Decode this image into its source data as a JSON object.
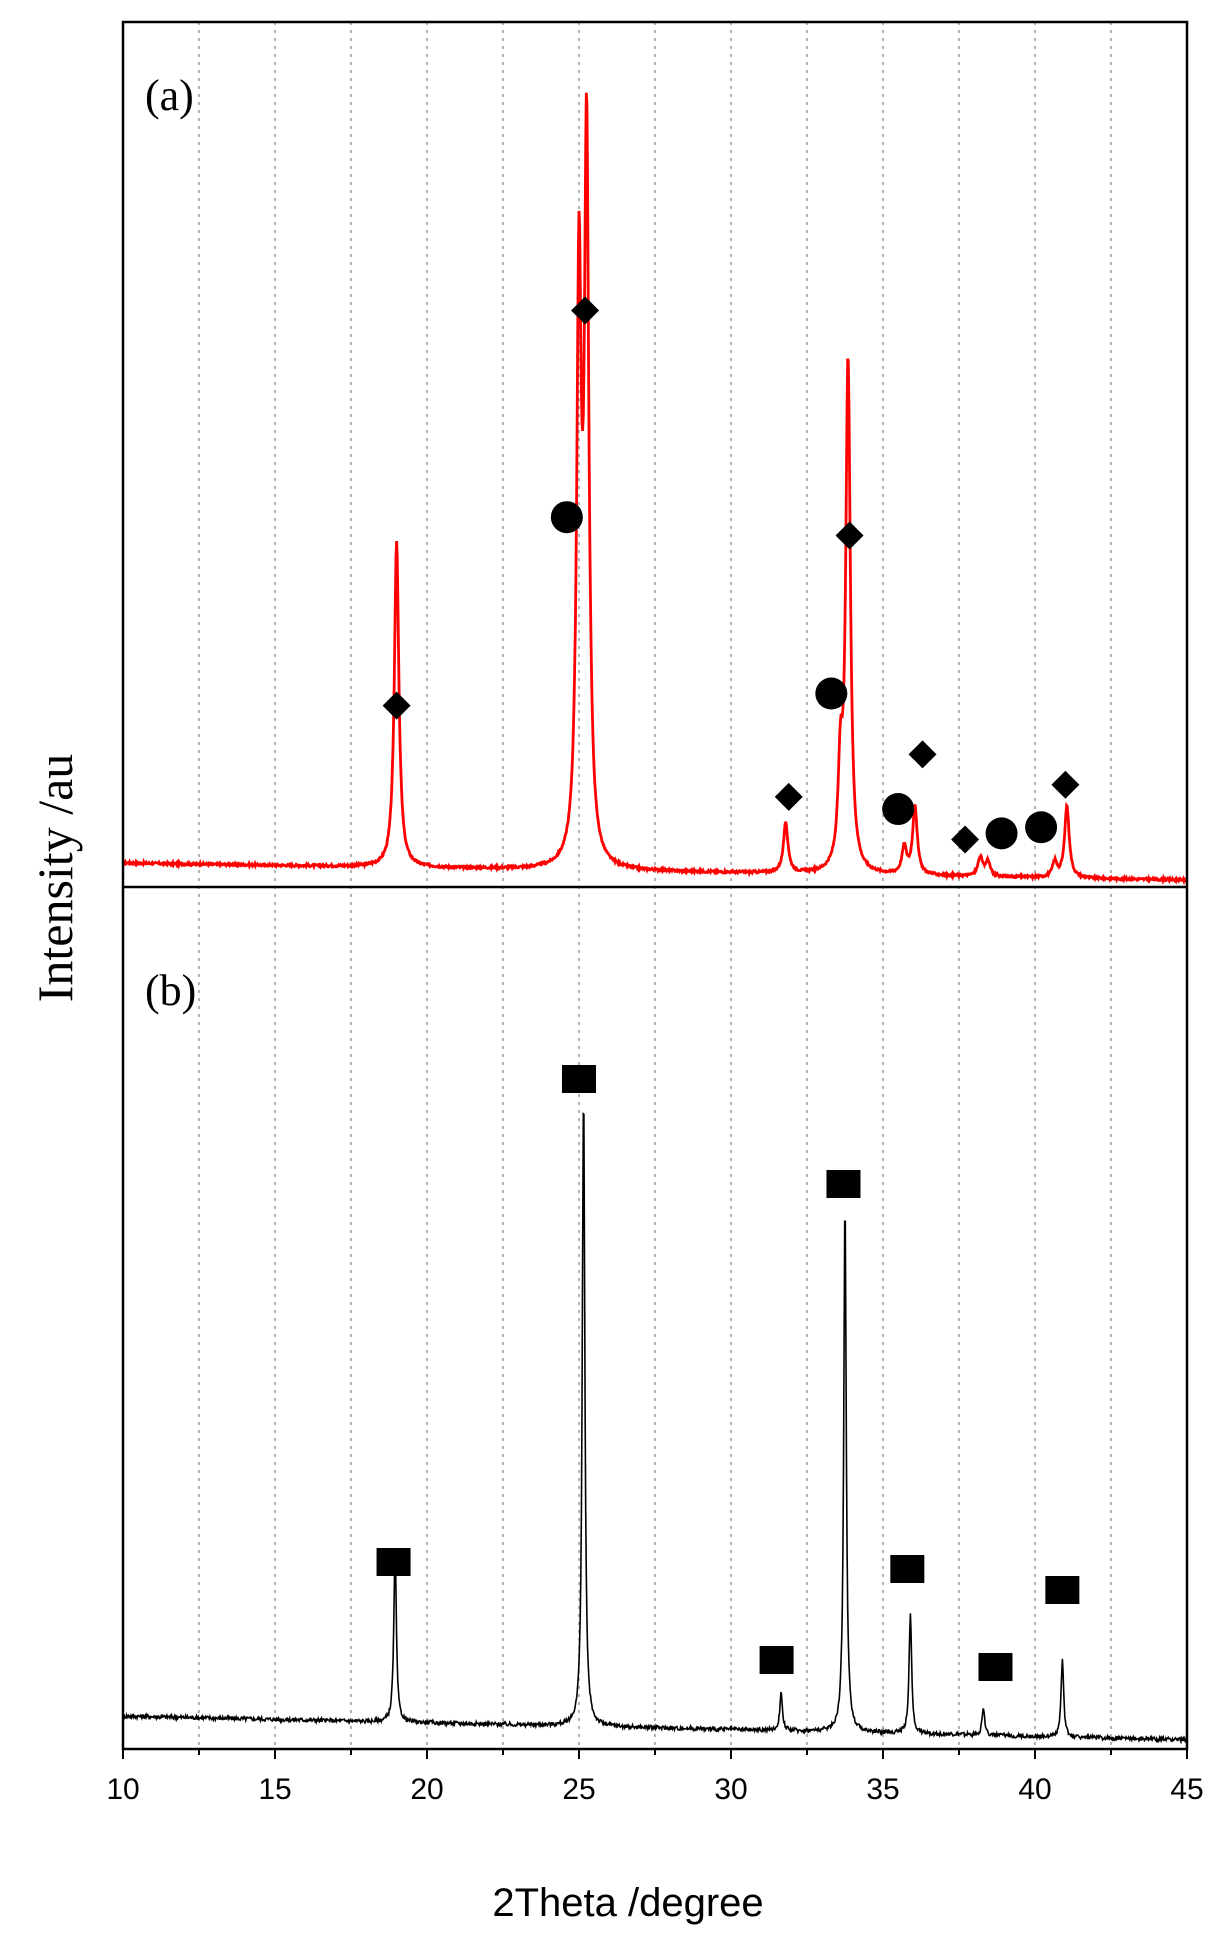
{
  "chart_data": {
    "type": "line",
    "xlabel": "2Theta /degree",
    "ylabel": "Intensity /au",
    "xlim": [
      10,
      45
    ],
    "xticks": [
      "10",
      "15",
      "20",
      "25",
      "30",
      "35",
      "40",
      "45"
    ],
    "grid": "vertical dotted lines every 2.5",
    "panels": [
      {
        "label": "(a)",
        "color": "#ff0000",
        "baseline_start": 0.05,
        "baseline_end": 0.005,
        "peaks": [
          {
            "x": 19.0,
            "height": 0.86
          },
          {
            "x": 25.0,
            "height": 1.52
          },
          {
            "x": 25.25,
            "height": 1.88
          },
          {
            "x": 31.8,
            "height": 0.13
          },
          {
            "x": 33.6,
            "height": 0.25
          },
          {
            "x": 33.85,
            "height": 1.34
          },
          {
            "x": 35.7,
            "height": 0.07
          },
          {
            "x": 36.05,
            "height": 0.18
          },
          {
            "x": 38.2,
            "height": 0.05
          },
          {
            "x": 38.45,
            "height": 0.04
          },
          {
            "x": 40.65,
            "height": 0.04
          },
          {
            "x": 41.05,
            "height": 0.19
          }
        ],
        "markers": [
          {
            "shape": "diamond",
            "x": 19.0,
            "y": 0.29
          },
          {
            "shape": "diamond",
            "x": 25.2,
            "y": 0.94
          },
          {
            "shape": "diamond",
            "x": 33.9,
            "y": 0.57
          },
          {
            "shape": "diamond",
            "x": 31.9,
            "y": 0.14
          },
          {
            "shape": "diamond",
            "x": 36.3,
            "y": 0.21
          },
          {
            "shape": "diamond",
            "x": 37.7,
            "y": 0.07
          },
          {
            "shape": "diamond",
            "x": 41.0,
            "y": 0.16
          },
          {
            "shape": "circle",
            "x": 24.6,
            "y": 0.6
          },
          {
            "shape": "circle",
            "x": 33.3,
            "y": 0.31
          },
          {
            "shape": "circle",
            "x": 35.5,
            "y": 0.12
          },
          {
            "shape": "circle",
            "x": 38.9,
            "y": 0.08
          },
          {
            "shape": "circle",
            "x": 40.2,
            "y": 0.09
          }
        ]
      },
      {
        "label": "(b)",
        "color": "#000000",
        "baseline_start": 0.04,
        "baseline_end": 0.006,
        "peaks": [
          {
            "x": 18.95,
            "height": 0.25
          },
          {
            "x": 25.15,
            "height": 0.91
          },
          {
            "x": 31.65,
            "height": 0.055
          },
          {
            "x": 33.75,
            "height": 0.76
          },
          {
            "x": 35.9,
            "height": 0.17
          },
          {
            "x": 38.3,
            "height": 0.04
          },
          {
            "x": 40.9,
            "height": 0.11
          }
        ],
        "markers": [
          {
            "shape": "square",
            "x": 18.9,
            "y": 0.26
          },
          {
            "shape": "square",
            "x": 25.0,
            "y": 0.95
          },
          {
            "shape": "square",
            "x": 33.7,
            "y": 0.8
          },
          {
            "shape": "square",
            "x": 31.5,
            "y": 0.12
          },
          {
            "shape": "square",
            "x": 35.8,
            "y": 0.25
          },
          {
            "shape": "square",
            "x": 38.7,
            "y": 0.11
          },
          {
            "shape": "square",
            "x": 40.9,
            "y": 0.22
          }
        ]
      }
    ]
  }
}
